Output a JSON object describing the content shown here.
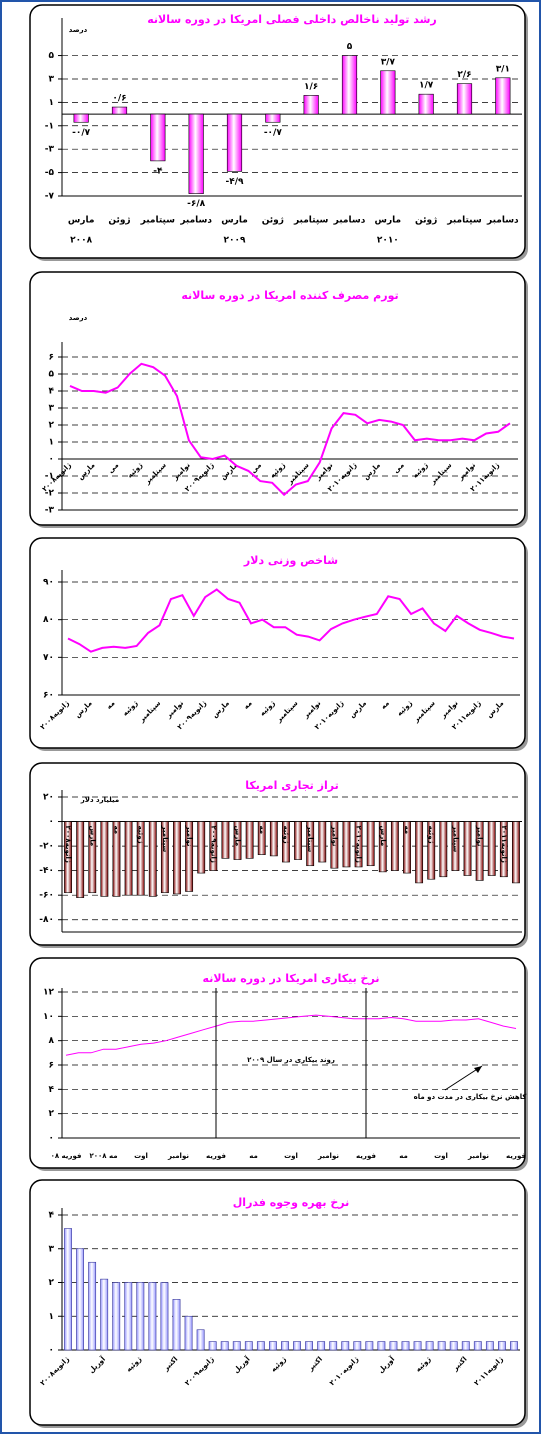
{
  "chart_data": [
    {
      "type": "bar",
      "title": "رشد تولید ناخالص داخلی فصلی امریکا در دوره سالانه",
      "ylabel": "درصد",
      "categories": [
        "مارس",
        "ژوئن",
        "سپتامبر",
        "دسامبر",
        "مارس",
        "ژوئن",
        "سپتامبر",
        "دسامبر",
        "مارس",
        "ژوئن",
        "سپتامبر",
        "دسامبر"
      ],
      "category_years": [
        "۲۰۰۸",
        null,
        null,
        null,
        "۲۰۰۹",
        null,
        null,
        null,
        "۲۰۱۰",
        null,
        null,
        null
      ],
      "values": [
        -0.7,
        0.6,
        -4,
        -6.8,
        -4.9,
        -0.7,
        1.6,
        5,
        3.7,
        1.7,
        2.6,
        3.1
      ],
      "value_labels": [
        "-۰/۷",
        "۰/۶",
        "-۴",
        "-۶/۸",
        "-۴/۹",
        "-۰/۷",
        "۱/۶",
        "۵",
        "۳/۷",
        "۱/۷",
        "۲/۶",
        "۳/۱"
      ],
      "color": "#ff00ff",
      "ylim": [
        -7,
        6.5
      ],
      "yticks": [
        {
          "value": 5,
          "label": "۵"
        },
        {
          "value": 3,
          "label": "۳"
        },
        {
          "value": 1,
          "label": "۱"
        },
        {
          "value": -1,
          "label": "-۱"
        },
        {
          "value": -3,
          "label": "-۳"
        },
        {
          "value": -5,
          "label": "-۵"
        },
        {
          "value": -7,
          "label": "-۷"
        }
      ],
      "grid": true
    },
    {
      "type": "line",
      "title": "تورم مصرف کننده امریکا در دوره سالانه",
      "ylabel": "درصد",
      "categories": [
        "ژانویه۲۰۰۸",
        null,
        "مارس",
        null,
        "می",
        null,
        "ژوئیه",
        null,
        "سپتامبر",
        null,
        "نوامبر",
        null,
        "ژانویه۲۰۰۹",
        null,
        "مارس",
        null,
        "می",
        null,
        "ژوئیه",
        null,
        "سپتامبر",
        null,
        "نوامبر",
        null,
        "ژانویه۲۰۱۰",
        null,
        "مارس",
        null,
        "می",
        null,
        "ژوئیه",
        null,
        "سپتامبر",
        null,
        "نوامبر",
        null,
        "ژانویه۲۰۱۱",
        null
      ],
      "values": [
        4.3,
        4.0,
        4.0,
        3.9,
        4.2,
        5.0,
        5.6,
        5.4,
        4.9,
        3.7,
        1.1,
        0.1,
        0.0,
        0.2,
        -0.4,
        -0.7,
        -1.3,
        -1.4,
        -2.1,
        -1.5,
        -1.3,
        -0.2,
        1.8,
        2.7,
        2.6,
        2.1,
        2.3,
        2.2,
        2.0,
        1.1,
        1.2,
        1.1,
        1.1,
        1.2,
        1.1,
        1.5,
        1.6,
        2.1
      ],
      "color": "#ff00ff",
      "ylim": [
        -3,
        6
      ],
      "yticks": [
        {
          "value": 6,
          "label": "۶"
        },
        {
          "value": 5,
          "label": "۵"
        },
        {
          "value": 4,
          "label": "۴"
        },
        {
          "value": 3,
          "label": "۳"
        },
        {
          "value": 2,
          "label": "۲"
        },
        {
          "value": 1,
          "label": "۱"
        },
        {
          "value": 0,
          "label": "۰"
        },
        {
          "value": -1,
          "label": "-۱"
        },
        {
          "value": -2,
          "label": "-۲"
        },
        {
          "value": -3,
          "label": "-۳"
        }
      ],
      "grid": true
    },
    {
      "type": "line",
      "title": "شاخص وزنی دلار",
      "categories": [
        "ژانویه۲۰۰۸",
        null,
        "مارس",
        null,
        "مه",
        null,
        "ژوئیه",
        null,
        "سپتامبر",
        null,
        "نوامبر",
        null,
        "ژانویه۲۰۰۹",
        null,
        "مارس",
        null,
        "مه",
        null,
        "ژوئیه",
        null,
        "سپتامبر",
        null,
        "نوامبر",
        null,
        "ژانویه۲۰۱۰",
        null,
        "مارس",
        null,
        "مه",
        null,
        "ژوئیه",
        null,
        "سپتامبر",
        null,
        "نوامبر",
        null,
        "ژانویه۲۰۱۱",
        null,
        "مارس",
        null
      ],
      "values": [
        75,
        73.5,
        71.5,
        72.5,
        72.8,
        72.5,
        73,
        76.5,
        78.5,
        85.5,
        86.5,
        81,
        86,
        88,
        85.5,
        84.5,
        79,
        80,
        78,
        78,
        76,
        75.5,
        74.5,
        77.5,
        79,
        80,
        80.8,
        81.5,
        86.2,
        85.5,
        81.5,
        83,
        79,
        77,
        81,
        79,
        77.3,
        76.5,
        75.5,
        75
      ],
      "color": "#ff00ff",
      "ylim": [
        60,
        90
      ],
      "yticks": [
        {
          "value": 90,
          "label": "۹۰"
        },
        {
          "value": 80,
          "label": "۸۰"
        },
        {
          "value": 70,
          "label": "۷۰"
        },
        {
          "value": 60,
          "label": "۶۰"
        }
      ],
      "grid": true
    },
    {
      "type": "bar",
      "title": "تراز تجاری امریکا",
      "ylabel": "میلیارد دلار",
      "categories": [
        "ژانویه۲۰۰۸",
        null,
        "مارس",
        null,
        "مه",
        null,
        "ژوئیه",
        null,
        "سپتامبر",
        null,
        "نوامبر",
        null,
        "ژانویه۲۰۰۹",
        null,
        "مارس",
        null,
        "مه",
        null,
        "ژوئیه",
        null,
        "سپتامبر",
        null,
        "نوامبر",
        null,
        "ژانویه۲۰۱۰",
        null,
        "مارس",
        null,
        "مه",
        null,
        "ژوئیه",
        null,
        "سپتامبر",
        null,
        "نوامبر",
        null,
        "ژانویه۲۰۱۱",
        null
      ],
      "values": [
        -58,
        -62,
        -58,
        -61,
        -61,
        -60,
        -60,
        -61,
        -58,
        -59,
        -57,
        -42,
        -40,
        -30,
        -31,
        -30,
        -27,
        -28,
        -33,
        -31,
        -36,
        -33,
        -38,
        -37,
        -37,
        -36,
        -41,
        -40,
        -42,
        -50,
        -47,
        -45,
        -40,
        -44,
        -48,
        -44,
        -45,
        -50
      ],
      "color": "#800000",
      "ylim": [
        -90,
        20
      ],
      "yticks": [
        {
          "value": 20,
          "label": "۲۰"
        },
        {
          "value": 0,
          "label": "۰"
        },
        {
          "value": -20,
          "label": "-۲۰"
        },
        {
          "value": -40,
          "label": "-۴۰"
        },
        {
          "value": -60,
          "label": "-۶۰"
        },
        {
          "value": -80,
          "label": "-۸۰"
        }
      ],
      "grid": true
    },
    {
      "type": "line",
      "title": "نرخ بیکاری امریکا در دوره سالانه",
      "categories": [
        "فوریه ۰۸",
        null,
        null,
        "مه ۲۰۰۸",
        null,
        null,
        "اوت",
        null,
        null,
        "نوامبر",
        null,
        null,
        "فوریه",
        null,
        null,
        "مه",
        null,
        null,
        "اوت",
        null,
        null,
        "نوامبر",
        null,
        null,
        "فوریه",
        null,
        null,
        "مه",
        null,
        null,
        "اوت",
        null,
        null,
        "نوامبر",
        null,
        null,
        "فوریه"
      ],
      "values": [
        6.8,
        7.0,
        7.0,
        7.3,
        7.3,
        7.5,
        7.7,
        7.8,
        8.0,
        8.3,
        8.6,
        8.9,
        9.2,
        9.5,
        9.6,
        9.6,
        9.7,
        9.8,
        9.9,
        10.0,
        10.1,
        10.0,
        9.9,
        9.8,
        9.8,
        9.8,
        9.9,
        9.8,
        9.6,
        9.6,
        9.6,
        9.7,
        9.7,
        9.8,
        9.5,
        9.2,
        9.0
      ],
      "annotations": [
        "روند بیکاری در سال ۲۰۰۹",
        "کاهش نرخ بیکاری در مدت دو ماه"
      ],
      "color": "#ff00ff",
      "ylim": [
        0,
        12
      ],
      "yticks": [
        {
          "value": 12,
          "label": "۱۲"
        },
        {
          "value": 10,
          "label": "۱۰"
        },
        {
          "value": 8,
          "label": "۸"
        },
        {
          "value": 6,
          "label": "۶"
        },
        {
          "value": 4,
          "label": "۴"
        },
        {
          "value": 2,
          "label": "۲"
        },
        {
          "value": 0,
          "label": "۰"
        }
      ],
      "grid": true
    },
    {
      "type": "bar",
      "title": "نرخ بهره وجوه فدرال",
      "categories": [
        "ژانویه۲۰۰۸",
        null,
        null,
        "آوریل",
        null,
        null,
        "ژوئیه",
        null,
        null,
        "اکتبر",
        null,
        null,
        "ژانویه۲۰۰۹",
        null,
        null,
        "آوریل",
        null,
        null,
        "ژوئیه",
        null,
        null,
        "اکتبر",
        null,
        null,
        "ژانویه۲۰۱۰",
        null,
        null,
        "آوریل",
        null,
        null,
        "ژوئیه",
        null,
        null,
        "اکتبر",
        null,
        null,
        "ژانویه۲۰۱۱",
        null
      ],
      "values": [
        3.6,
        3.0,
        2.6,
        2.1,
        2.0,
        2.0,
        2.0,
        2.0,
        2.0,
        1.5,
        1.0,
        0.6,
        0.25,
        0.25,
        0.25,
        0.25,
        0.25,
        0.25,
        0.25,
        0.25,
        0.25,
        0.25,
        0.25,
        0.25,
        0.25,
        0.25,
        0.25,
        0.25,
        0.25,
        0.25,
        0.25,
        0.25,
        0.25,
        0.25,
        0.25,
        0.25,
        0.25,
        0.25
      ],
      "color": "#9999ff",
      "ylim": [
        0,
        4
      ],
      "yticks": [
        {
          "value": 4,
          "label": "۴"
        },
        {
          "value": 3,
          "label": "۳"
        },
        {
          "value": 2,
          "label": "۲"
        },
        {
          "value": 1,
          "label": "۱"
        },
        {
          "value": 0,
          "label": "۰"
        }
      ],
      "grid": true
    }
  ]
}
